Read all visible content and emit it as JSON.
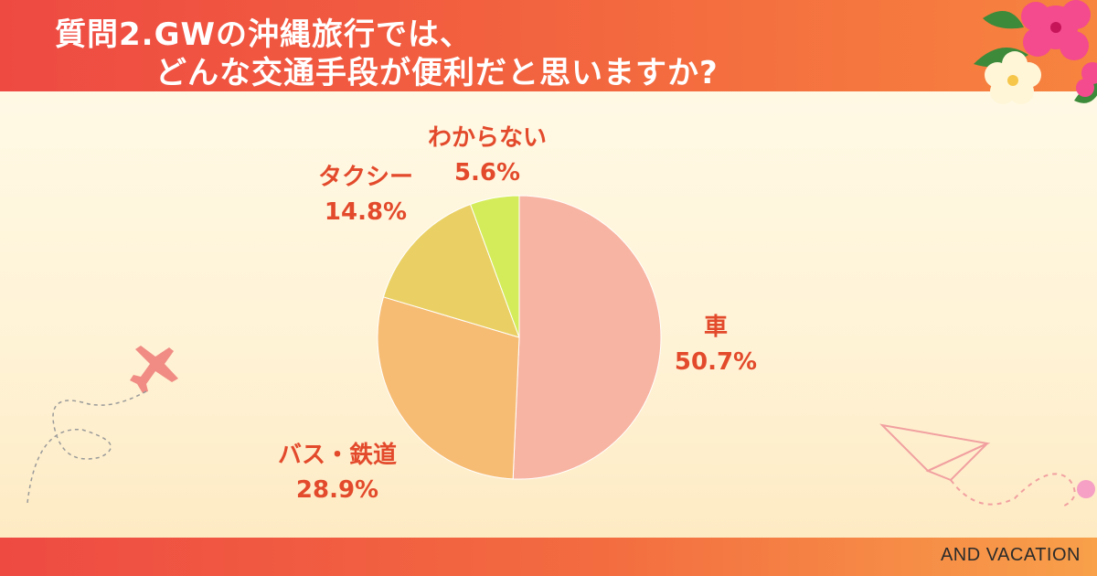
{
  "header": {
    "title_line1": "質問2.GWの沖縄旅行では、",
    "title_line2": "どんな交通手段が便利だと思いますか?"
  },
  "footer": {
    "brand": "AND VACATION"
  },
  "chart_data": {
    "type": "pie",
    "start_angle_deg": 0,
    "direction": "clockwise",
    "slices": [
      {
        "label": "車",
        "value": 50.7,
        "value_label": "50.7%",
        "color": "#f8b4a2"
      },
      {
        "label": "バス・鉄道",
        "value": 28.9,
        "value_label": "28.9%",
        "color": "#f6bc74"
      },
      {
        "label": "タクシー",
        "value": 14.8,
        "value_label": "14.8%",
        "color": "#ead064"
      },
      {
        "label": "わからない",
        "value": 5.6,
        "value_label": "5.6%",
        "color": "#d4ec5a"
      }
    ]
  },
  "decorations": {
    "airplane_color": "#f08c84",
    "paper_plane_color": "#f1a0a0",
    "hibiscus_color": "#f44a8e",
    "flower_color": "#fff6d8"
  }
}
